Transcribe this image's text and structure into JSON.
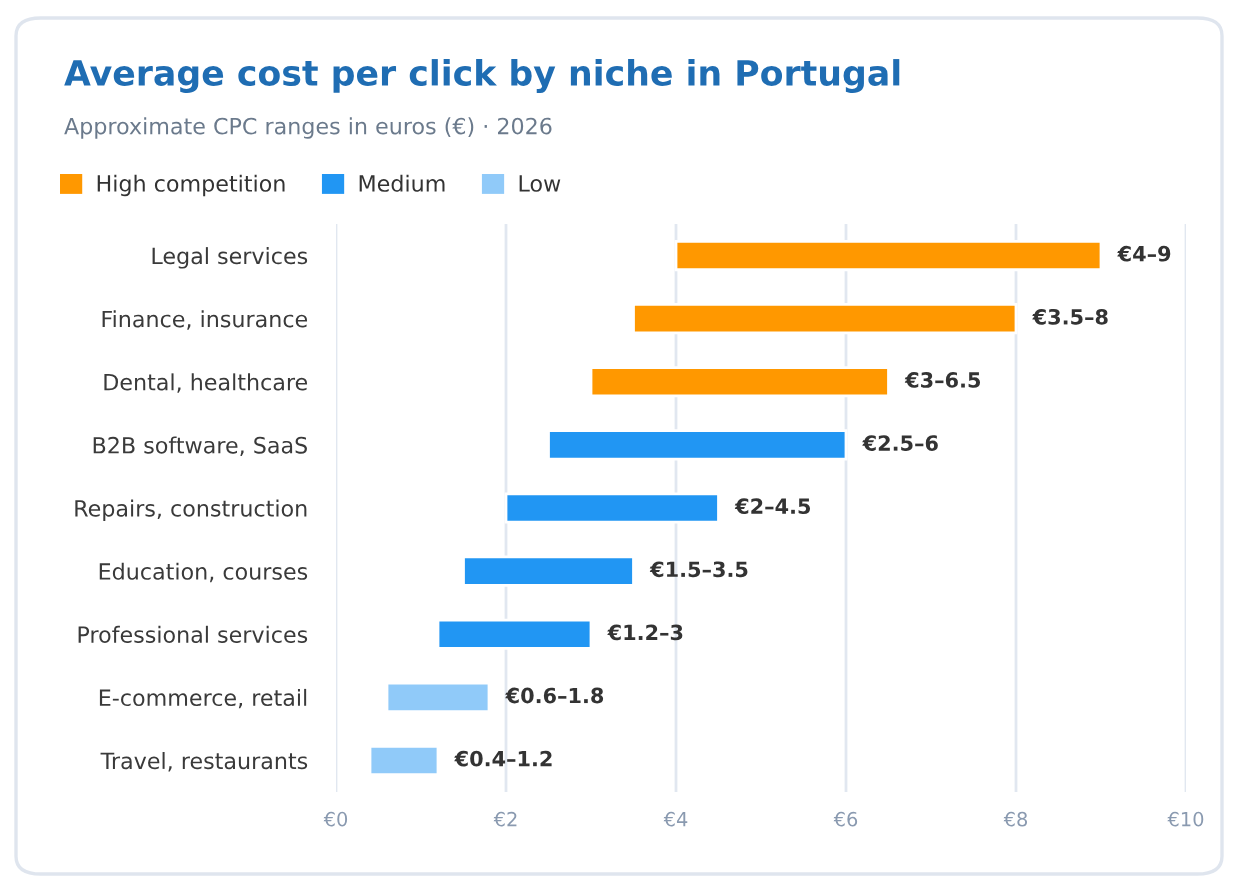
{
  "chart_data": {
    "type": "bar",
    "orientation": "horizontal",
    "title": "Average cost per click by niche in Portugal",
    "subtitle": "Approximate CPC ranges in euros (€) · 2026",
    "categories": [
      "Legal services",
      "Finance, insurance",
      "Dental, healthcare",
      "B2B software, SaaS",
      "Repairs, construction",
      "Education, courses",
      "Professional services",
      "E-commerce, retail",
      "Travel, restaurants"
    ],
    "series": [
      {
        "name": "High competition",
        "color": "#ff9800",
        "base": [
          4,
          3.5,
          3,
          null,
          null,
          null,
          null,
          null,
          null
        ],
        "values": [
          5,
          4.5,
          3.5,
          null,
          null,
          null,
          null,
          null,
          null
        ],
        "value_labels": [
          "€4–9",
          "€3.5–8",
          "€3–6.5",
          null,
          null,
          null,
          null,
          null,
          null
        ]
      },
      {
        "name": "Medium",
        "color": "#2196f3",
        "base": [
          null,
          null,
          null,
          2.5,
          2,
          1.5,
          1.2,
          null,
          null
        ],
        "values": [
          null,
          null,
          null,
          3.5,
          2.5,
          2,
          1.8,
          null,
          null
        ],
        "value_labels": [
          null,
          null,
          null,
          "€2.5–6",
          "€2–4.5",
          "€1.5–3.5",
          "€1.2–3",
          null,
          null
        ]
      },
      {
        "name": "Low",
        "color": "#90caf9",
        "base": [
          null,
          null,
          null,
          null,
          null,
          null,
          null,
          0.6,
          0.4
        ],
        "values": [
          null,
          null,
          null,
          null,
          null,
          null,
          null,
          1.2,
          0.8
        ],
        "value_labels": [
          null,
          null,
          null,
          null,
          null,
          null,
          null,
          "€0.6–1.8",
          "€0.4–1.2"
        ]
      }
    ],
    "xlim": [
      0,
      10
    ],
    "xticks": [
      {
        "value": 0,
        "label": "€0"
      },
      {
        "value": 2,
        "label": "€2"
      },
      {
        "value": 4,
        "label": "€4"
      },
      {
        "value": 6,
        "label": "€6"
      },
      {
        "value": 8,
        "label": "€8"
      },
      {
        "value": 10,
        "label": "€10"
      }
    ],
    "grid": "x",
    "legend": "top left"
  }
}
